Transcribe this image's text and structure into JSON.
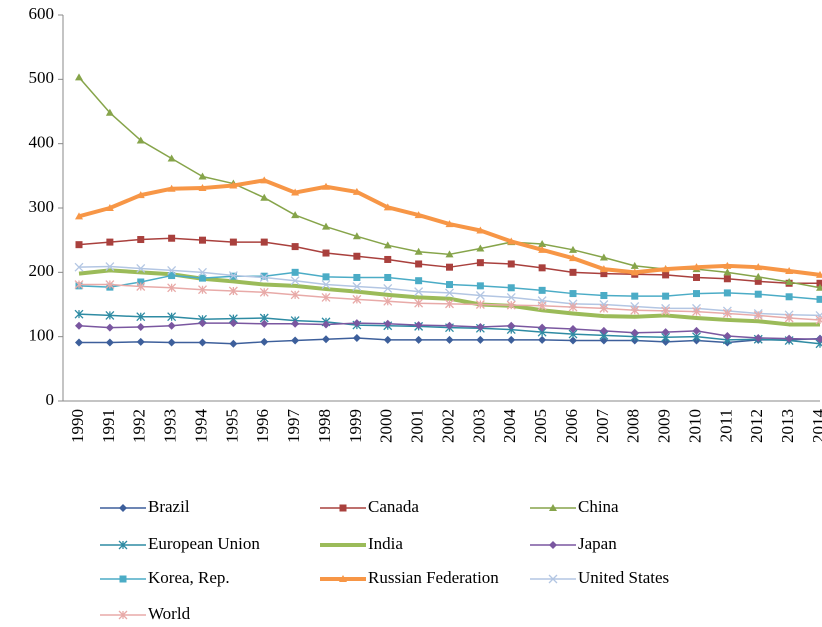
{
  "chart_data": {
    "type": "line",
    "categories": [
      "1990",
      "1991",
      "1992",
      "1993",
      "1994",
      "1995",
      "1996",
      "1997",
      "1998",
      "1999",
      "2000",
      "2001",
      "2002",
      "2003",
      "2004",
      "2005",
      "2006",
      "2007",
      "2008",
      "2009",
      "2010",
      "2011",
      "2012",
      "2013",
      "2014"
    ],
    "ylim": [
      0,
      600
    ],
    "yticks": [
      0,
      100,
      200,
      300,
      400,
      500,
      600
    ],
    "series": [
      {
        "name": "Brazil",
        "color": "#3d5f9b",
        "marker": "diamond",
        "values": [
          91,
          91,
          92,
          91,
          91,
          89,
          92,
          94,
          96,
          98,
          95,
          95,
          95,
          95,
          95,
          95,
          94,
          94,
          94,
          92,
          94,
          91,
          95,
          95,
          97
        ]
      },
      {
        "name": "Canada",
        "color": "#a9403d",
        "marker": "square",
        "values": [
          243,
          247,
          251,
          253,
          250,
          247,
          247,
          240,
          230,
          225,
          220,
          213,
          208,
          215,
          213,
          207,
          200,
          198,
          197,
          196,
          192,
          190,
          186,
          183,
          183
        ]
      },
      {
        "name": "China",
        "color": "#86a44a",
        "marker": "triangle",
        "values": [
          503,
          448,
          405,
          377,
          349,
          338,
          316,
          289,
          271,
          256,
          242,
          232,
          228,
          237,
          247,
          244,
          235,
          223,
          210,
          205,
          205,
          200,
          193,
          185,
          176
        ]
      },
      {
        "name": "European Union",
        "color": "#2e8ba3",
        "marker": "star",
        "values": [
          135,
          133,
          131,
          131,
          127,
          128,
          129,
          125,
          123,
          118,
          117,
          116,
          114,
          113,
          111,
          107,
          104,
          102,
          100,
          99,
          100,
          95,
          96,
          94,
          89
        ]
      },
      {
        "name": "India",
        "color": "#9bbb59",
        "marker": "none",
        "width": 4,
        "values": [
          198,
          203,
          200,
          197,
          190,
          186,
          181,
          179,
          174,
          170,
          165,
          161,
          159,
          150,
          148,
          141,
          136,
          132,
          131,
          133,
          129,
          126,
          124,
          119,
          119
        ]
      },
      {
        "name": "Japan",
        "color": "#7a57a0",
        "marker": "diamond",
        "values": [
          117,
          114,
          115,
          117,
          121,
          121,
          120,
          120,
          119,
          121,
          120,
          118,
          117,
          115,
          117,
          114,
          112,
          109,
          106,
          107,
          109,
          101,
          98,
          97,
          96
        ]
      },
      {
        "name": "Korea, Rep.",
        "color": "#4bacc6",
        "marker": "square",
        "values": [
          179,
          177,
          185,
          195,
          191,
          194,
          194,
          200,
          193,
          192,
          192,
          187,
          181,
          179,
          176,
          172,
          167,
          164,
          163,
          163,
          167,
          168,
          166,
          162,
          158
        ]
      },
      {
        "name": "Russian Federation",
        "color": "#f79646",
        "marker": "triangle",
        "width": 4,
        "values": [
          287,
          300,
          320,
          330,
          331,
          335,
          343,
          324,
          333,
          325,
          301,
          289,
          275,
          265,
          248,
          235,
          222,
          205,
          200,
          205,
          208,
          210,
          208,
          202,
          196
        ]
      },
      {
        "name": "United States",
        "color": "#b3c6e3",
        "marker": "cross",
        "values": [
          208,
          209,
          206,
          203,
          200,
          195,
          192,
          187,
          181,
          178,
          175,
          170,
          168,
          164,
          161,
          156,
          151,
          150,
          147,
          144,
          144,
          140,
          136,
          134,
          133
        ]
      },
      {
        "name": "World",
        "color": "#e8aaa8",
        "marker": "star",
        "values": [
          181,
          181,
          178,
          176,
          173,
          171,
          169,
          165,
          161,
          158,
          155,
          152,
          151,
          150,
          149,
          148,
          146,
          144,
          141,
          140,
          139,
          136,
          133,
          129,
          126
        ]
      }
    ]
  }
}
